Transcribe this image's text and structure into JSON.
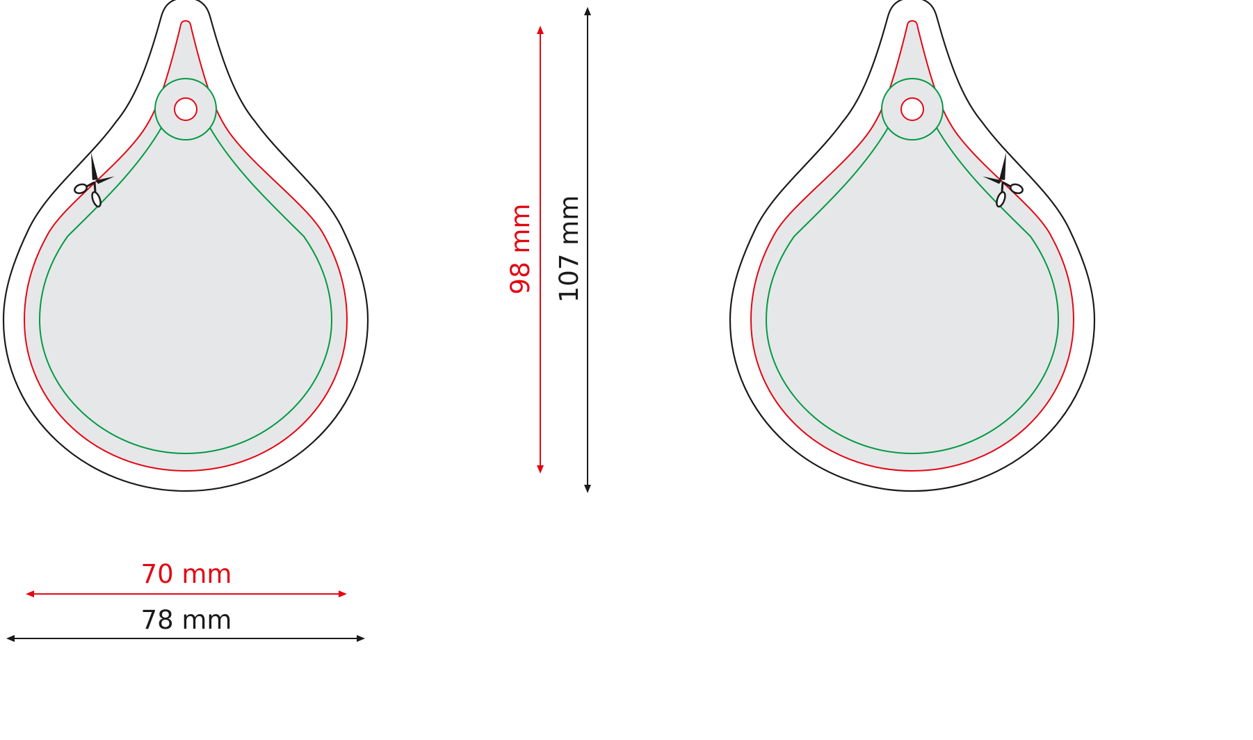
{
  "colors": {
    "outline": "#1a1a1a",
    "bleed": "#e30613",
    "safe_zone": "#009a44",
    "fill": "#e6e7e8"
  },
  "dimensions": {
    "width_inner": "70 mm",
    "width_outer": "78 mm",
    "height_inner": "98 mm",
    "height_outer": "107 mm"
  },
  "icons": {
    "cut_mark": "scissors-icon"
  }
}
